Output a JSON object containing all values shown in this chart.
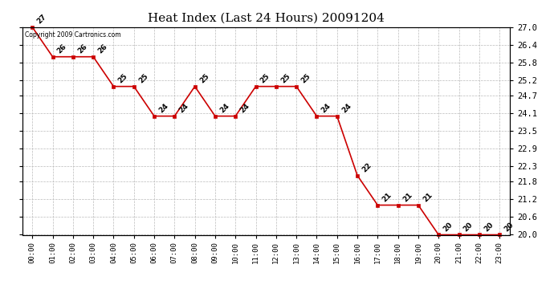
{
  "title": "Heat Index (Last 24 Hours) 20091204",
  "copyright_text": "Copyright 2009 Cartronics.com",
  "x_labels": [
    "00:00",
    "01:00",
    "02:00",
    "03:00",
    "04:00",
    "05:00",
    "06:00",
    "07:00",
    "08:00",
    "09:00",
    "10:00",
    "11:00",
    "12:00",
    "13:00",
    "14:00",
    "15:00",
    "16:00",
    "17:00",
    "18:00",
    "19:00",
    "20:00",
    "21:00",
    "22:00",
    "23:00"
  ],
  "y_values": [
    27.0,
    26.0,
    26.0,
    26.0,
    25.0,
    25.0,
    24.0,
    24.0,
    25.0,
    24.0,
    24.0,
    25.0,
    25.0,
    25.0,
    24.0,
    24.0,
    22.0,
    21.0,
    21.0,
    21.0,
    20.0,
    20.0,
    20.0,
    20.0
  ],
  "point_labels": [
    "27",
    "26",
    "26",
    "26",
    "25",
    "25",
    "24",
    "24",
    "25",
    "24",
    "24",
    "25",
    "25",
    "25",
    "24",
    "24",
    "22",
    "21",
    "21",
    "21",
    "20",
    "20",
    "20",
    "20"
  ],
  "ylim_min": 20.0,
  "ylim_max": 27.0,
  "yticks": [
    20.0,
    20.6,
    21.2,
    21.8,
    22.3,
    22.9,
    23.5,
    24.1,
    24.7,
    25.2,
    25.8,
    26.4,
    27.0
  ],
  "line_color": "#cc0000",
  "marker_color": "#cc0000",
  "background_color": "#ffffff",
  "grid_color": "#bbbbbb",
  "title_fontsize": 11,
  "label_fontsize": 7
}
